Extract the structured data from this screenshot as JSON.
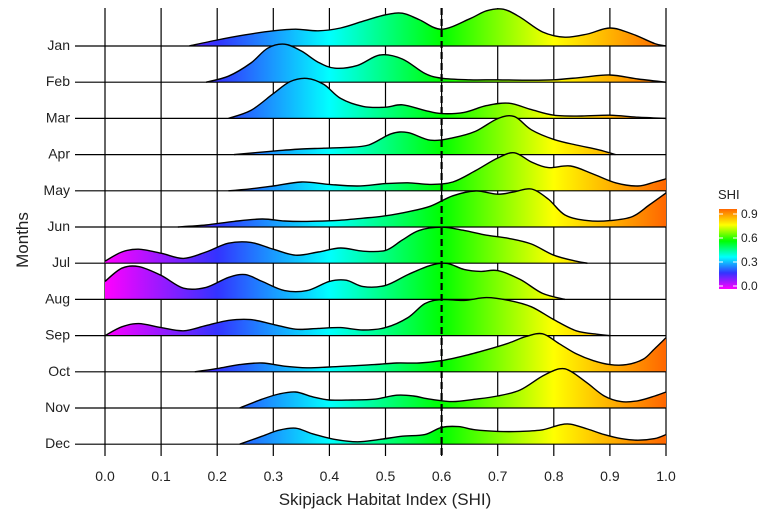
{
  "chart_data": {
    "type": "ridgeline",
    "xlabel": "Skipjack Habitat Index (SHI)",
    "ylabel": "Months",
    "xlim": [
      0.0,
      1.0
    ],
    "x_ticks": [
      "0.0",
      "0.1",
      "0.2",
      "0.3",
      "0.4",
      "0.5",
      "0.6",
      "0.7",
      "0.8",
      "0.9",
      "1.0"
    ],
    "reference_line": {
      "x": 0.6,
      "style": "dashed"
    },
    "legend": {
      "title": "SHI",
      "labels": [
        "0.9",
        "0.6",
        "0.3",
        "0.0"
      ],
      "values": [
        0.9,
        0.6,
        0.3,
        0.0
      ],
      "placement": "right"
    },
    "colorscale": [
      {
        "value": 0.0,
        "color": "#ff00ff"
      },
      {
        "value": 0.2,
        "color": "#3333ff"
      },
      {
        "value": 0.4,
        "color": "#00ffff"
      },
      {
        "value": 0.6,
        "color": "#00ff00"
      },
      {
        "value": 0.8,
        "color": "#ffff00"
      },
      {
        "value": 1.0,
        "color": "#ff6600"
      }
    ],
    "series": [
      {
        "name": "Jan",
        "x": [
          0.15,
          0.2,
          0.25,
          0.3,
          0.34,
          0.38,
          0.42,
          0.46,
          0.5,
          0.53,
          0.56,
          0.6,
          0.65,
          0.68,
          0.71,
          0.74,
          0.78,
          0.82,
          0.86,
          0.9,
          0.94,
          0.98,
          1.0
        ],
        "y": [
          0.0,
          0.15,
          0.28,
          0.38,
          0.42,
          0.38,
          0.45,
          0.62,
          0.78,
          0.82,
          0.66,
          0.42,
          0.68,
          0.88,
          0.92,
          0.72,
          0.35,
          0.22,
          0.3,
          0.45,
          0.3,
          0.06,
          0.0
        ]
      },
      {
        "name": "Feb",
        "x": [
          0.18,
          0.22,
          0.26,
          0.29,
          0.32,
          0.35,
          0.38,
          0.41,
          0.45,
          0.49,
          0.53,
          0.57,
          0.6,
          0.65,
          0.7,
          0.75,
          0.8,
          0.85,
          0.9,
          0.95,
          1.0
        ],
        "y": [
          0.0,
          0.15,
          0.48,
          0.85,
          0.95,
          0.78,
          0.5,
          0.35,
          0.42,
          0.68,
          0.58,
          0.22,
          0.1,
          0.06,
          0.06,
          0.05,
          0.06,
          0.12,
          0.18,
          0.08,
          0.0
        ]
      },
      {
        "name": "Mar",
        "x": [
          0.22,
          0.26,
          0.3,
          0.33,
          0.36,
          0.39,
          0.42,
          0.46,
          0.5,
          0.53,
          0.57,
          0.6,
          0.64,
          0.68,
          0.72,
          0.76,
          0.8,
          0.85,
          0.9,
          0.95,
          1.0
        ],
        "y": [
          0.0,
          0.2,
          0.62,
          0.92,
          1.0,
          0.85,
          0.5,
          0.3,
          0.28,
          0.34,
          0.2,
          0.12,
          0.15,
          0.32,
          0.38,
          0.22,
          0.08,
          0.06,
          0.08,
          0.03,
          0.0
        ]
      },
      {
        "name": "Apr",
        "x": [
          0.23,
          0.27,
          0.31,
          0.35,
          0.39,
          0.43,
          0.47,
          0.51,
          0.54,
          0.58,
          0.62,
          0.66,
          0.7,
          0.73,
          0.76,
          0.8,
          0.84,
          0.88,
          0.91
        ],
        "y": [
          0.0,
          0.05,
          0.1,
          0.14,
          0.16,
          0.18,
          0.24,
          0.52,
          0.55,
          0.36,
          0.42,
          0.58,
          0.9,
          0.95,
          0.62,
          0.38,
          0.24,
          0.12,
          0.0
        ]
      },
      {
        "name": "May",
        "x": [
          0.22,
          0.26,
          0.3,
          0.35,
          0.4,
          0.45,
          0.5,
          0.54,
          0.58,
          0.62,
          0.66,
          0.7,
          0.73,
          0.76,
          0.79,
          0.83,
          0.87,
          0.91,
          0.95,
          0.98,
          1.0
        ],
        "y": [
          0.0,
          0.05,
          0.12,
          0.22,
          0.16,
          0.12,
          0.18,
          0.2,
          0.16,
          0.22,
          0.5,
          0.82,
          0.95,
          0.72,
          0.58,
          0.62,
          0.42,
          0.2,
          0.12,
          0.22,
          0.3
        ]
      },
      {
        "name": "Jun",
        "x": [
          0.13,
          0.18,
          0.23,
          0.28,
          0.32,
          0.36,
          0.41,
          0.46,
          0.5,
          0.54,
          0.58,
          0.62,
          0.66,
          0.7,
          0.73,
          0.76,
          0.79,
          0.82,
          0.86,
          0.9,
          0.94,
          0.97,
          1.0
        ],
        "y": [
          0.0,
          0.05,
          0.14,
          0.2,
          0.15,
          0.14,
          0.16,
          0.22,
          0.28,
          0.38,
          0.52,
          0.78,
          0.9,
          0.82,
          0.88,
          0.95,
          0.7,
          0.3,
          0.16,
          0.16,
          0.26,
          0.55,
          0.85
        ]
      },
      {
        "name": "Jul",
        "x": [
          0.0,
          0.03,
          0.06,
          0.1,
          0.14,
          0.18,
          0.22,
          0.26,
          0.3,
          0.34,
          0.38,
          0.42,
          0.46,
          0.5,
          0.53,
          0.56,
          0.6,
          0.64,
          0.68,
          0.72,
          0.76,
          0.8,
          0.84,
          0.86
        ],
        "y": [
          0.05,
          0.28,
          0.35,
          0.25,
          0.12,
          0.28,
          0.5,
          0.52,
          0.35,
          0.2,
          0.28,
          0.38,
          0.3,
          0.32,
          0.58,
          0.82,
          0.9,
          0.82,
          0.7,
          0.62,
          0.48,
          0.2,
          0.05,
          0.0
        ]
      },
      {
        "name": "Aug",
        "x": [
          0.0,
          0.03,
          0.06,
          0.1,
          0.14,
          0.18,
          0.22,
          0.25,
          0.28,
          0.32,
          0.36,
          0.4,
          0.43,
          0.46,
          0.5,
          0.54,
          0.58,
          0.61,
          0.64,
          0.67,
          0.7,
          0.74,
          0.78,
          0.82
        ],
        "y": [
          0.45,
          0.78,
          0.82,
          0.6,
          0.28,
          0.3,
          0.55,
          0.62,
          0.45,
          0.22,
          0.22,
          0.45,
          0.48,
          0.32,
          0.35,
          0.62,
          0.85,
          0.9,
          0.75,
          0.7,
          0.72,
          0.5,
          0.15,
          0.0
        ]
      },
      {
        "name": "Sep",
        "x": [
          0.0,
          0.03,
          0.06,
          0.1,
          0.14,
          0.18,
          0.22,
          0.26,
          0.3,
          0.34,
          0.38,
          0.42,
          0.46,
          0.5,
          0.54,
          0.57,
          0.6,
          0.64,
          0.68,
          0.72,
          0.76,
          0.8,
          0.84,
          0.88,
          0.9
        ],
        "y": [
          0.0,
          0.22,
          0.3,
          0.2,
          0.12,
          0.25,
          0.38,
          0.4,
          0.28,
          0.16,
          0.18,
          0.2,
          0.14,
          0.2,
          0.45,
          0.8,
          0.9,
          0.88,
          0.95,
          0.88,
          0.72,
          0.4,
          0.12,
          0.03,
          0.0
        ]
      },
      {
        "name": "Oct",
        "x": [
          0.16,
          0.2,
          0.24,
          0.28,
          0.32,
          0.36,
          0.4,
          0.44,
          0.48,
          0.52,
          0.56,
          0.6,
          0.64,
          0.68,
          0.72,
          0.75,
          0.78,
          0.81,
          0.84,
          0.87,
          0.9,
          0.93,
          0.96,
          0.98,
          1.0
        ],
        "y": [
          0.0,
          0.08,
          0.18,
          0.22,
          0.14,
          0.1,
          0.12,
          0.15,
          0.18,
          0.22,
          0.22,
          0.28,
          0.4,
          0.55,
          0.72,
          0.88,
          0.95,
          0.7,
          0.45,
          0.28,
          0.18,
          0.18,
          0.32,
          0.58,
          0.85
        ]
      },
      {
        "name": "Nov",
        "x": [
          0.24,
          0.28,
          0.31,
          0.34,
          0.37,
          0.4,
          0.44,
          0.48,
          0.52,
          0.55,
          0.58,
          0.62,
          0.66,
          0.7,
          0.74,
          0.78,
          0.81,
          0.83,
          0.86,
          0.89,
          0.92,
          0.95,
          0.98,
          1.0
        ],
        "y": [
          0.0,
          0.22,
          0.35,
          0.4,
          0.28,
          0.2,
          0.2,
          0.22,
          0.32,
          0.3,
          0.22,
          0.16,
          0.22,
          0.3,
          0.45,
          0.8,
          0.98,
          0.92,
          0.62,
          0.3,
          0.16,
          0.18,
          0.3,
          0.4
        ]
      },
      {
        "name": "Dec",
        "x": [
          0.24,
          0.28,
          0.31,
          0.34,
          0.37,
          0.41,
          0.45,
          0.49,
          0.53,
          0.57,
          0.6,
          0.63,
          0.66,
          0.7,
          0.74,
          0.78,
          0.81,
          0.83,
          0.86,
          0.89,
          0.92,
          0.95,
          0.98,
          1.0
        ],
        "y": [
          0.0,
          0.2,
          0.35,
          0.4,
          0.26,
          0.12,
          0.06,
          0.12,
          0.2,
          0.24,
          0.42,
          0.44,
          0.36,
          0.32,
          0.32,
          0.36,
          0.48,
          0.5,
          0.38,
          0.24,
          0.14,
          0.1,
          0.14,
          0.24
        ]
      }
    ]
  }
}
